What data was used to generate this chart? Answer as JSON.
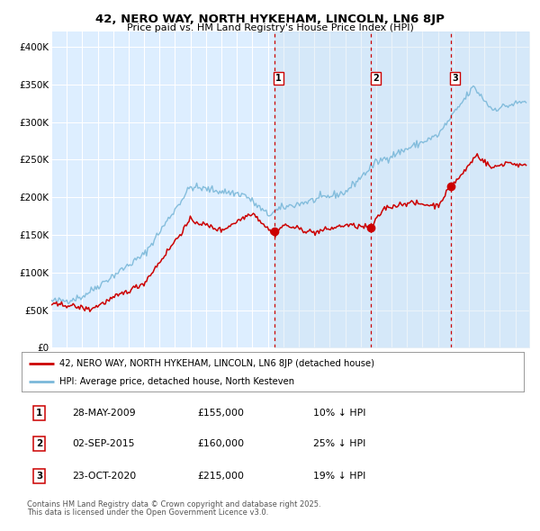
{
  "title": "42, NERO WAY, NORTH HYKEHAM, LINCOLN, LN6 8JP",
  "subtitle": "Price paid vs. HM Land Registry's House Price Index (HPI)",
  "bg_color": "#ffffff",
  "plot_bg": "#ddeeff",
  "grid_color": "#ffffff",
  "hpi_color": "#7ab8d9",
  "price_color": "#cc0000",
  "ylim": [
    0,
    420000
  ],
  "yticks": [
    0,
    50000,
    100000,
    150000,
    200000,
    250000,
    300000,
    350000,
    400000
  ],
  "ytick_labels": [
    "£0",
    "£50K",
    "£100K",
    "£150K",
    "£200K",
    "£250K",
    "£300K",
    "£350K",
    "£400K"
  ],
  "legend_label_price": "42, NERO WAY, NORTH HYKEHAM, LINCOLN, LN6 8JP (detached house)",
  "legend_label_hpi": "HPI: Average price, detached house, North Kesteven",
  "sale1_date": "28-MAY-2009",
  "sale1_price": "£155,000",
  "sale1_pct": "10% ↓ HPI",
  "sale1_x": 2009.41,
  "sale1_y": 155000,
  "sale2_date": "02-SEP-2015",
  "sale2_price": "£160,000",
  "sale2_pct": "25% ↓ HPI",
  "sale2_x": 2015.67,
  "sale2_y": 160000,
  "sale3_date": "23-OCT-2020",
  "sale3_price": "£215,000",
  "sale3_pct": "19% ↓ HPI",
  "sale3_x": 2020.81,
  "sale3_y": 215000,
  "footnote1": "Contains HM Land Registry data © Crown copyright and database right 2025.",
  "footnote2": "This data is licensed under the Open Government Licence v3.0.",
  "xmin": 1995,
  "xmax": 2025.9
}
